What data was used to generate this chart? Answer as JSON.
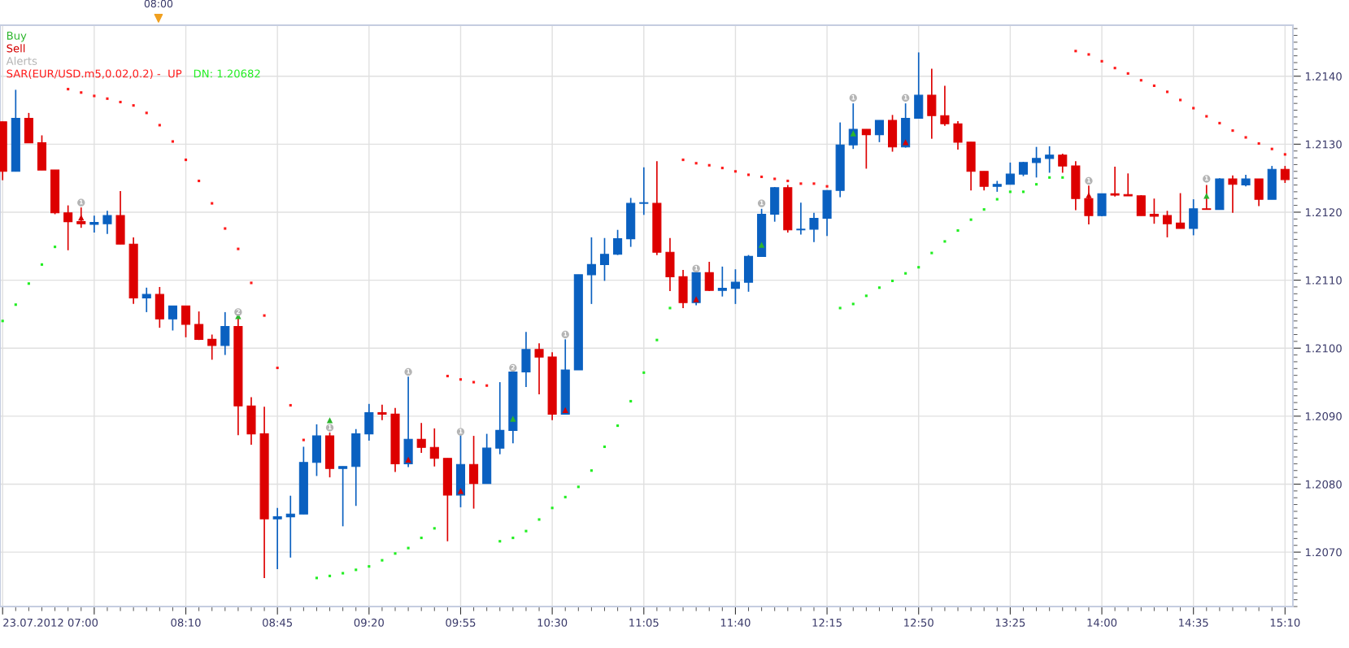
{
  "chart_data": {
    "type": "candlestick",
    "x": [
      "2012-07-23T07:00",
      "2012-07-23T07:05",
      "2012-07-23T07:10",
      "2012-07-23T07:15",
      "2012-07-23T07:20",
      "2012-07-23T07:25",
      "2012-07-23T07:30",
      "2012-07-23T07:35",
      "2012-07-23T07:40",
      "2012-07-23T07:45",
      "2012-07-23T07:50",
      "2012-07-23T07:55",
      "2012-07-23T08:00",
      "2012-07-23T08:05",
      "2012-07-23T08:10",
      "2012-07-23T08:15",
      "2012-07-23T08:20",
      "2012-07-23T08:25",
      "2012-07-23T08:30",
      "2012-07-23T08:35",
      "2012-07-23T08:40",
      "2012-07-23T08:45",
      "2012-07-23T08:50",
      "2012-07-23T08:55",
      "2012-07-23T09:00",
      "2012-07-23T09:05",
      "2012-07-23T09:10",
      "2012-07-23T09:15",
      "2012-07-23T09:20",
      "2012-07-23T09:25",
      "2012-07-23T09:30",
      "2012-07-23T09:35",
      "2012-07-23T09:40",
      "2012-07-23T09:45",
      "2012-07-23T09:50",
      "2012-07-23T09:55",
      "2012-07-23T10:00",
      "2012-07-23T10:05",
      "2012-07-23T10:10",
      "2012-07-23T10:15",
      "2012-07-23T10:20",
      "2012-07-23T10:25",
      "2012-07-23T10:30",
      "2012-07-23T10:35",
      "2012-07-23T10:40",
      "2012-07-23T10:45",
      "2012-07-23T10:50",
      "2012-07-23T10:55",
      "2012-07-23T11:00",
      "2012-07-23T11:05",
      "2012-07-23T11:10",
      "2012-07-23T11:15",
      "2012-07-23T11:20",
      "2012-07-23T11:25",
      "2012-07-23T11:30",
      "2012-07-23T11:35",
      "2012-07-23T11:40",
      "2012-07-23T11:45",
      "2012-07-23T11:50",
      "2012-07-23T11:55",
      "2012-07-23T12:00",
      "2012-07-23T12:05",
      "2012-07-23T12:10",
      "2012-07-23T12:15",
      "2012-07-23T12:20",
      "2012-07-23T12:25",
      "2012-07-23T12:30",
      "2012-07-23T12:35",
      "2012-07-23T12:40",
      "2012-07-23T12:45",
      "2012-07-23T12:50",
      "2012-07-23T12:55",
      "2012-07-23T13:00",
      "2012-07-23T13:05",
      "2012-07-23T13:10",
      "2012-07-23T13:15",
      "2012-07-23T13:20",
      "2012-07-23T13:25",
      "2012-07-23T13:30",
      "2012-07-23T13:35",
      "2012-07-23T13:40",
      "2012-07-23T13:45",
      "2012-07-23T13:50",
      "2012-07-23T13:55",
      "2012-07-23T14:00",
      "2012-07-23T14:05",
      "2012-07-23T14:10",
      "2012-07-23T14:15",
      "2012-07-23T14:20",
      "2012-07-23T14:25",
      "2012-07-23T14:30",
      "2012-07-23T14:35",
      "2012-07-23T14:40",
      "2012-07-23T14:45",
      "2012-07-23T14:50",
      "2012-07-23T14:55",
      "2012-07-23T15:00",
      "2012-07-23T15:05",
      "2012-07-23T15:10"
    ],
    "ohlc": [
      [
        1.21333,
        1.21333,
        1.21247,
        1.2126
      ],
      [
        1.2126,
        1.2138,
        1.2126,
        1.21338
      ],
      [
        1.21338,
        1.21346,
        1.21302,
        1.21302
      ],
      [
        1.21302,
        1.21313,
        1.21262,
        1.21262
      ],
      [
        1.21262,
        1.21262,
        1.21197,
        1.21199
      ],
      [
        1.21199,
        1.2121,
        1.21144,
        1.21186
      ],
      [
        1.21186,
        1.21207,
        1.21177,
        1.21183
      ],
      [
        1.21182,
        1.21195,
        1.2117,
        1.21185
      ],
      [
        1.21183,
        1.21202,
        1.21168,
        1.21195
      ],
      [
        1.21195,
        1.21231,
        1.21153,
        1.21153
      ],
      [
        1.21153,
        1.21163,
        1.21065,
        1.21074
      ],
      [
        1.21074,
        1.21089,
        1.21053,
        1.21079
      ],
      [
        1.21079,
        1.2109,
        1.2103,
        1.21043
      ],
      [
        1.21043,
        1.21062,
        1.21026,
        1.21062
      ],
      [
        1.21062,
        1.21062,
        1.21016,
        1.21035
      ],
      [
        1.21035,
        1.21054,
        1.21012,
        1.21013
      ],
      [
        1.21013,
        1.2102,
        1.20983,
        1.21004
      ],
      [
        1.21004,
        1.21053,
        1.2099,
        1.21032
      ],
      [
        1.21032,
        1.21046,
        1.20872,
        1.20915
      ],
      [
        1.20915,
        1.20928,
        1.20858,
        1.20874
      ],
      [
        1.20874,
        1.20914,
        1.20662,
        1.20749
      ],
      [
        1.20749,
        1.20765,
        1.20675,
        1.20752
      ],
      [
        1.20752,
        1.20783,
        1.20692,
        1.20756
      ],
      [
        1.20756,
        1.20855,
        1.20756,
        1.20832
      ],
      [
        1.20832,
        1.20888,
        1.20812,
        1.20871
      ],
      [
        1.20871,
        1.20876,
        1.2081,
        1.20823
      ],
      [
        1.20823,
        1.20826,
        1.20738,
        1.20826
      ],
      [
        1.20826,
        1.20881,
        1.20768,
        1.20874
      ],
      [
        1.20874,
        1.20918,
        1.20864,
        1.20905
      ],
      [
        1.20905,
        1.20917,
        1.20894,
        1.20903
      ],
      [
        1.20903,
        1.20912,
        1.20818,
        1.2083
      ],
      [
        1.2083,
        1.20958,
        1.20825,
        1.20866
      ],
      [
        1.20866,
        1.2089,
        1.20846,
        1.20854
      ],
      [
        1.20854,
        1.20882,
        1.20826,
        1.20838
      ],
      [
        1.20838,
        1.20838,
        1.20716,
        1.20784
      ],
      [
        1.20784,
        1.20872,
        1.20766,
        1.20829
      ],
      [
        1.20829,
        1.20871,
        1.20764,
        1.20801
      ],
      [
        1.20801,
        1.20874,
        1.20801,
        1.20853
      ],
      [
        1.20853,
        1.2095,
        1.20844,
        1.20879
      ],
      [
        1.20879,
        1.20965,
        1.2086,
        1.20965
      ],
      [
        1.20965,
        1.21024,
        1.20943,
        1.20998
      ],
      [
        1.20998,
        1.21007,
        1.20932,
        1.20987
      ],
      [
        1.20987,
        1.20994,
        1.20894,
        1.20903
      ],
      [
        1.20903,
        1.21013,
        1.20903,
        1.20968
      ],
      [
        1.20968,
        1.21108,
        1.20968,
        1.21108
      ],
      [
        1.21108,
        1.21163,
        1.21065,
        1.21123
      ],
      [
        1.21123,
        1.21162,
        1.21099,
        1.21138
      ],
      [
        1.21138,
        1.21174,
        1.21137,
        1.21161
      ],
      [
        1.21161,
        1.21221,
        1.21149,
        1.21213
      ],
      [
        1.21213,
        1.21266,
        1.21196,
        1.21214
      ],
      [
        1.21213,
        1.21275,
        1.21137,
        1.21141
      ],
      [
        1.21141,
        1.21162,
        1.21084,
        1.21105
      ],
      [
        1.21105,
        1.21115,
        1.21059,
        1.21067
      ],
      [
        1.21067,
        1.21113,
        1.21063,
        1.21111
      ],
      [
        1.21111,
        1.21127,
        1.21084,
        1.21085
      ],
      [
        1.21085,
        1.2112,
        1.21076,
        1.21088
      ],
      [
        1.21088,
        1.21116,
        1.21065,
        1.21097
      ],
      [
        1.21097,
        1.21137,
        1.21083,
        1.21135
      ],
      [
        1.21135,
        1.21205,
        1.21135,
        1.21197
      ],
      [
        1.21197,
        1.21237,
        1.21186,
        1.21236
      ],
      [
        1.21236,
        1.2124,
        1.2117,
        1.21174
      ],
      [
        1.21174,
        1.21214,
        1.21167,
        1.21175
      ],
      [
        1.21175,
        1.21199,
        1.21156,
        1.21191
      ],
      [
        1.21191,
        1.21232,
        1.21165,
        1.21232
      ],
      [
        1.21232,
        1.21332,
        1.21222,
        1.21299
      ],
      [
        1.21299,
        1.2136,
        1.21293,
        1.21322
      ],
      [
        1.21322,
        1.21322,
        1.21264,
        1.21314
      ],
      [
        1.21314,
        1.21335,
        1.21303,
        1.21335
      ],
      [
        1.21335,
        1.21343,
        1.21289,
        1.21296
      ],
      [
        1.21296,
        1.2136,
        1.21295,
        1.21338
      ],
      [
        1.21338,
        1.21435,
        1.21338,
        1.21372
      ],
      [
        1.21372,
        1.21411,
        1.21308,
        1.21342
      ],
      [
        1.21342,
        1.21386,
        1.21327,
        1.2133
      ],
      [
        1.2133,
        1.21334,
        1.21292,
        1.21303
      ],
      [
        1.21303,
        1.21303,
        1.21232,
        1.2126
      ],
      [
        1.2126,
        1.2126,
        1.21232,
        1.21238
      ],
      [
        1.21238,
        1.21246,
        1.2123,
        1.21241
      ],
      [
        1.21241,
        1.21273,
        1.21241,
        1.21256
      ],
      [
        1.21256,
        1.21274,
        1.21253,
        1.21273
      ],
      [
        1.21273,
        1.21296,
        1.21251,
        1.21279
      ],
      [
        1.21279,
        1.21297,
        1.21258,
        1.21284
      ],
      [
        1.21284,
        1.21286,
        1.21258,
        1.21268
      ],
      [
        1.21268,
        1.21275,
        1.21203,
        1.2122
      ],
      [
        1.2122,
        1.21239,
        1.21182,
        1.21195
      ],
      [
        1.21195,
        1.21227,
        1.21194,
        1.21227
      ],
      [
        1.21227,
        1.21267,
        1.21223,
        1.21225
      ],
      [
        1.21226,
        1.21257,
        1.21224,
        1.21224
      ],
      [
        1.21224,
        1.21225,
        1.21195,
        1.21195
      ],
      [
        1.21197,
        1.2122,
        1.21183,
        1.21194
      ],
      [
        1.21195,
        1.21202,
        1.21163,
        1.21183
      ],
      [
        1.21184,
        1.21228,
        1.21176,
        1.21176
      ],
      [
        1.21176,
        1.21219,
        1.21166,
        1.21205
      ],
      [
        1.21205,
        1.2124,
        1.21204,
        1.21204
      ],
      [
        1.21204,
        1.2125,
        1.21204,
        1.21249
      ],
      [
        1.21249,
        1.21254,
        1.21199,
        1.21241
      ],
      [
        1.2124,
        1.21255,
        1.21238,
        1.21249
      ],
      [
        1.21249,
        1.21249,
        1.21209,
        1.21219
      ],
      [
        1.21219,
        1.21268,
        1.21219,
        1.21263
      ],
      [
        1.21263,
        1.21268,
        1.21243,
        1.21248
      ]
    ],
    "colors": [
      "#dd0000",
      "#0a60c0",
      "#dd0000",
      "#dd0000",
      "#dd0000",
      "#dd0000",
      "#dd0000",
      "#0a60c0",
      "#0a60c0",
      "#dd0000",
      "#dd0000",
      "#0a60c0",
      "#dd0000",
      "#0a60c0",
      "#dd0000",
      "#dd0000",
      "#dd0000",
      "#0a60c0",
      "#dd0000",
      "#dd0000",
      "#dd0000",
      "#0a60c0",
      "#0a60c0",
      "#0a60c0",
      "#0a60c0",
      "#dd0000",
      "#0a60c0",
      "#0a60c0",
      "#0a60c0",
      "#dd0000",
      "#dd0000",
      "#0a60c0",
      "#dd0000",
      "#dd0000",
      "#dd0000",
      "#0a60c0",
      "#dd0000",
      "#0a60c0",
      "#0a60c0",
      "#0a60c0",
      "#0a60c0",
      "#dd0000",
      "#dd0000",
      "#0a60c0",
      "#0a60c0",
      "#0a60c0",
      "#0a60c0",
      "#0a60c0",
      "#0a60c0",
      "#0a60c0",
      "#dd0000",
      "#dd0000",
      "#dd0000",
      "#0a60c0",
      "#dd0000",
      "#0a60c0",
      "#0a60c0",
      "#0a60c0",
      "#0a60c0",
      "#0a60c0",
      "#dd0000",
      "#0a60c0",
      "#0a60c0",
      "#0a60c0",
      "#0a60c0",
      "#0a60c0",
      "#dd0000",
      "#0a60c0",
      "#dd0000",
      "#0a60c0",
      "#0a60c0",
      "#dd0000",
      "#dd0000",
      "#dd0000",
      "#dd0000",
      "#dd0000",
      "#0a60c0",
      "#0a60c0",
      "#0a60c0",
      "#0a60c0",
      "#0a60c0",
      "#dd0000",
      "#dd0000",
      "#dd0000",
      "#0a60c0",
      "#dd0000",
      "#dd0000",
      "#dd0000",
      "#dd0000",
      "#dd0000",
      "#dd0000",
      "#0a60c0",
      "#dd0000",
      "#0a60c0",
      "#dd0000",
      "#0a60c0",
      "#dd0000",
      "#0a60c0",
      "#dd0000"
    ],
    "series": [
      {
        "name": "Buy",
        "type": "scatter",
        "marker": "triangle",
        "color": "#2db52d",
        "x": [
          "2012-07-23T08:30",
          "2012-07-23T09:05",
          "2012-07-23T10:15",
          "2012-07-23T11:50",
          "2012-07-23T12:25",
          "2012-07-23T14:40"
        ],
        "values": [
          1.21047,
          1.20894,
          1.20896,
          1.21152,
          1.21316,
          1.21224
        ]
      },
      {
        "name": "Sell",
        "type": "scatter",
        "marker": "triangle",
        "color": "#d40000",
        "x": [
          "2012-07-23T07:30",
          "2012-07-23T09:35",
          "2012-07-23T09:55",
          "2012-07-23T10:35",
          "2012-07-23T11:25",
          "2012-07-23T12:45",
          "2012-07-23T13:55"
        ],
        "values": [
          1.21192,
          1.20836,
          1.2079,
          1.20909,
          1.21072,
          1.21303,
          1.21225
        ]
      },
      {
        "name": "Alerts",
        "type": "scatter",
        "marker": "circle",
        "color": "#b4b4b4",
        "x": [
          "2012-07-23T07:30",
          "2012-07-23T08:30",
          "2012-07-23T09:05",
          "2012-07-23T09:35",
          "2012-07-23T09:55",
          "2012-07-23T10:15",
          "2012-07-23T10:35",
          "2012-07-23T11:25",
          "2012-07-23T11:50",
          "2012-07-23T12:25",
          "2012-07-23T12:45",
          "2012-07-23T13:55",
          "2012-07-23T14:40"
        ],
        "values": [
          1.21214,
          1.21053,
          1.20883,
          1.20965,
          1.20877,
          1.20971,
          1.2102,
          1.21117,
          1.21213,
          1.21368,
          1.21368,
          1.21246,
          1.21249
        ]
      },
      {
        "name": "SAR(EUR/USD.m5,0.02,0.2) -  UP",
        "type": "scatter",
        "marker": "square",
        "color": "#ff1a1a",
        "x": [
          "2012-07-23T07:25",
          "2012-07-23T07:30",
          "2012-07-23T07:35",
          "2012-07-23T07:40",
          "2012-07-23T07:45",
          "2012-07-23T07:50",
          "2012-07-23T07:55",
          "2012-07-23T08:00",
          "2012-07-23T08:05",
          "2012-07-23T08:10",
          "2012-07-23T08:15",
          "2012-07-23T08:20",
          "2012-07-23T08:25",
          "2012-07-23T08:30",
          "2012-07-23T08:35",
          "2012-07-23T08:40",
          "2012-07-23T08:45",
          "2012-07-23T08:50",
          "2012-07-23T08:55",
          "2012-07-23T09:50",
          "2012-07-23T09:55",
          "2012-07-23T10:00",
          "2012-07-23T10:05",
          "2012-07-23T11:20",
          "2012-07-23T11:25",
          "2012-07-23T11:30",
          "2012-07-23T11:35",
          "2012-07-23T11:40",
          "2012-07-23T11:45",
          "2012-07-23T11:50",
          "2012-07-23T11:55",
          "2012-07-23T12:00",
          "2012-07-23T12:05",
          "2012-07-23T12:10",
          "2012-07-23T12:15",
          "2012-07-23T13:50",
          "2012-07-23T13:55",
          "2012-07-23T14:00",
          "2012-07-23T14:05",
          "2012-07-23T14:10",
          "2012-07-23T14:15",
          "2012-07-23T14:20",
          "2012-07-23T14:25",
          "2012-07-23T14:30",
          "2012-07-23T14:35",
          "2012-07-23T14:40",
          "2012-07-23T14:45",
          "2012-07-23T14:50",
          "2012-07-23T14:55",
          "2012-07-23T15:00",
          "2012-07-23T15:05",
          "2012-07-23T15:10"
        ],
        "values": [
          1.21381,
          1.21376,
          1.21371,
          1.21367,
          1.21362,
          1.21357,
          1.21346,
          1.21328,
          1.21304,
          1.21277,
          1.21246,
          1.21213,
          1.21176,
          1.21146,
          1.21096,
          1.21048,
          1.20971,
          1.20916,
          1.20865,
          1.20959,
          1.20954,
          1.2095,
          1.20945,
          1.21277,
          1.21272,
          1.21269,
          1.21265,
          1.2126,
          1.21255,
          1.21252,
          1.21249,
          1.21246,
          1.21242,
          1.21242,
          1.21238,
          1.21437,
          1.21432,
          1.21422,
          1.21412,
          1.21404,
          1.21394,
          1.21386,
          1.21377,
          1.21365,
          1.21353,
          1.21341,
          1.21331,
          1.2132,
          1.2131,
          1.21301,
          1.21293,
          1.21285
        ]
      },
      {
        "name": "DN: 1.20682",
        "type": "scatter",
        "marker": "square",
        "color": "#22ee22",
        "x": [
          "2012-07-23T07:00",
          "2012-07-23T07:05",
          "2012-07-23T07:10",
          "2012-07-23T07:15",
          "2012-07-23T07:20",
          "2012-07-23T09:00",
          "2012-07-23T09:05",
          "2012-07-23T09:10",
          "2012-07-23T09:15",
          "2012-07-23T09:20",
          "2012-07-23T09:25",
          "2012-07-23T09:30",
          "2012-07-23T09:35",
          "2012-07-23T09:40",
          "2012-07-23T09:45",
          "2012-07-23T10:10",
          "2012-07-23T10:15",
          "2012-07-23T10:20",
          "2012-07-23T10:25",
          "2012-07-23T10:30",
          "2012-07-23T10:35",
          "2012-07-23T10:40",
          "2012-07-23T10:45",
          "2012-07-23T10:50",
          "2012-07-23T10:55",
          "2012-07-23T11:00",
          "2012-07-23T11:05",
          "2012-07-23T11:10",
          "2012-07-23T11:15",
          "2012-07-23T12:20",
          "2012-07-23T12:25",
          "2012-07-23T12:30",
          "2012-07-23T12:35",
          "2012-07-23T12:40",
          "2012-07-23T12:45",
          "2012-07-23T12:50",
          "2012-07-23T12:55",
          "2012-07-23T13:00",
          "2012-07-23T13:05",
          "2012-07-23T13:10",
          "2012-07-23T13:15",
          "2012-07-23T13:20",
          "2012-07-23T13:25",
          "2012-07-23T13:30",
          "2012-07-23T13:35",
          "2012-07-23T13:40",
          "2012-07-23T13:45"
        ],
        "values": [
          1.2104,
          1.21064,
          1.21095,
          1.21123,
          1.21149,
          1.20662,
          1.20665,
          1.20669,
          1.20674,
          1.20679,
          1.20688,
          1.20698,
          1.20706,
          1.20721,
          1.20735,
          1.20716,
          1.20721,
          1.20731,
          1.20748,
          1.20765,
          1.20781,
          1.20796,
          1.2082,
          1.20855,
          1.20886,
          1.20922,
          1.20964,
          1.21012,
          1.21059,
          1.21059,
          1.21065,
          1.21077,
          1.21089,
          1.21099,
          1.2111,
          1.21119,
          1.2114,
          1.21157,
          1.21173,
          1.21189,
          1.21204,
          1.21219,
          1.2123,
          1.2123,
          1.21241,
          1.21251,
          1.21251
        ]
      }
    ],
    "xlim": [
      "2012-07-23T06:59",
      "2012-07-23T15:13"
    ],
    "xticks": [
      {
        "value": "2012-07-23T07:00",
        "label": "23.07.2012 07:00"
      },
      {
        "value": "2012-07-23T07:35",
        "label": null
      },
      {
        "value": "2012-07-23T08:10",
        "label": "08:10"
      },
      {
        "value": "2012-07-23T08:45",
        "label": "08:45"
      },
      {
        "value": "2012-07-23T09:20",
        "label": "09:20"
      },
      {
        "value": "2012-07-23T09:55",
        "label": "09:55"
      },
      {
        "value": "2012-07-23T10:30",
        "label": "10:30"
      },
      {
        "value": "2012-07-23T11:05",
        "label": "11:05"
      },
      {
        "value": "2012-07-23T11:40",
        "label": "11:40"
      },
      {
        "value": "2012-07-23T12:15",
        "label": "12:15"
      },
      {
        "value": "2012-07-23T12:50",
        "label": "12:50"
      },
      {
        "value": "2012-07-23T13:25",
        "label": "13:25"
      },
      {
        "value": "2012-07-23T14:00",
        "label": "14:00"
      },
      {
        "value": "2012-07-23T14:35",
        "label": "14:35"
      },
      {
        "value": "2012-07-23T15:10",
        "label": "15:10"
      }
    ],
    "ylim": [
      1.2062,
      1.21475
    ],
    "yticks": [
      {
        "value": 1.207,
        "label": "1.2070"
      },
      {
        "value": 1.208,
        "label": "1.2080"
      },
      {
        "value": 1.209,
        "label": "1.2090"
      },
      {
        "value": 1.21,
        "label": "1.2100"
      },
      {
        "value": 1.211,
        "label": "1.2110"
      },
      {
        "value": 1.212,
        "label": "1.2120"
      },
      {
        "value": 1.213,
        "label": "1.2130"
      },
      {
        "value": 1.214,
        "label": "1.2140"
      }
    ],
    "grid": true,
    "legend": "top left",
    "annotations": [
      "08:00",
      {
        "text": "1",
        "x": "2012-07-23T07:30",
        "y": 1.21214
      },
      {
        "text": "2",
        "x": "2012-07-23T08:30",
        "y": 1.21053
      },
      {
        "text": "1",
        "x": "2012-07-23T09:05",
        "y": 1.20883
      },
      {
        "text": "1",
        "x": "2012-07-23T09:35",
        "y": 1.20965
      },
      {
        "text": "1",
        "x": "2012-07-23T09:55",
        "y": 1.20877
      },
      {
        "text": "2",
        "x": "2012-07-23T10:15",
        "y": 1.20971
      },
      {
        "text": "1",
        "x": "2012-07-23T10:35",
        "y": 1.2102
      },
      {
        "text": "1",
        "x": "2012-07-23T11:25",
        "y": 1.21117
      },
      {
        "text": "1",
        "x": "2012-07-23T11:50",
        "y": 1.21213
      },
      {
        "text": "1",
        "x": "2012-07-23T12:25",
        "y": 1.21368
      },
      {
        "text": "1",
        "x": "2012-07-23T12:45",
        "y": 1.21368
      },
      {
        "text": "1",
        "x": "2012-07-23T13:55",
        "y": 1.21246
      },
      {
        "text": "1",
        "x": "2012-07-23T14:40",
        "y": 1.21249
      }
    ]
  }
}
